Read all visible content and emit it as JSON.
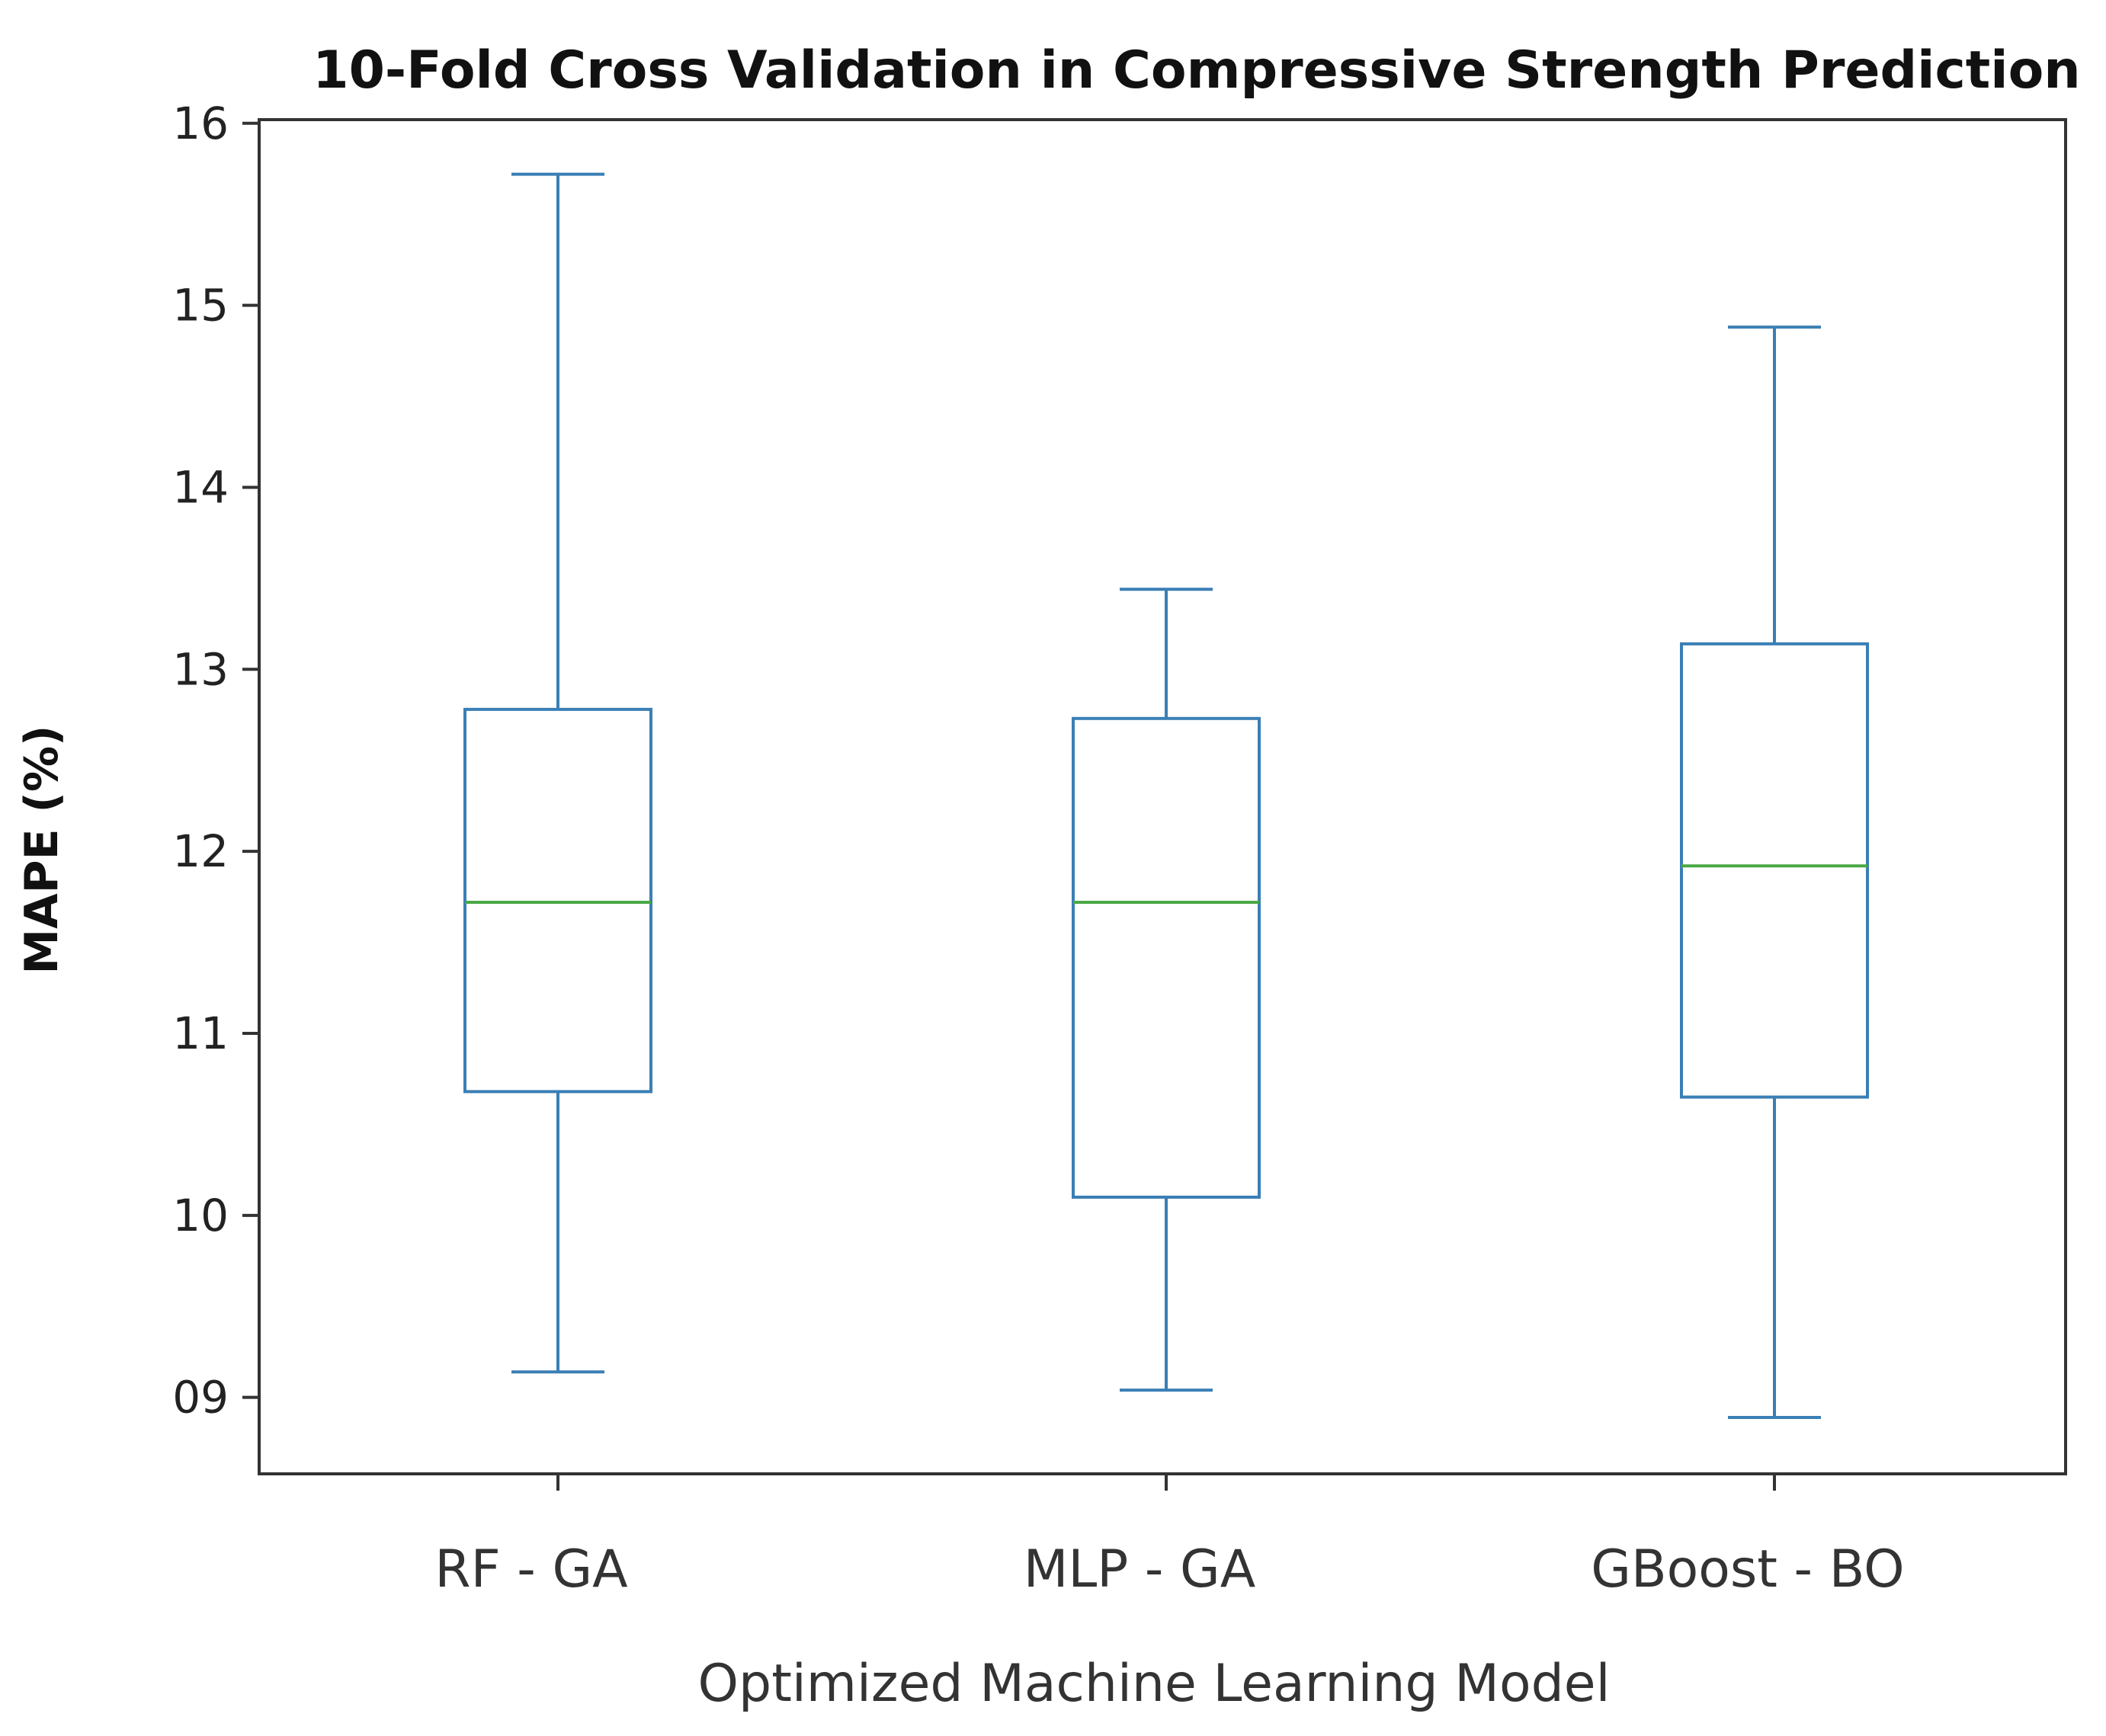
{
  "chart_data": {
    "type": "box",
    "title": "10-Fold Cross Validation in Compressive Strength Prediction",
    "xlabel": "Optimized Machine Learning Model",
    "ylabel": "MAPE (%)",
    "ylim": [
      8.58,
      16.02
    ],
    "yticks": [
      {
        "value": 9,
        "label": "09"
      },
      {
        "value": 10,
        "label": "10"
      },
      {
        "value": 11,
        "label": "11"
      },
      {
        "value": 12,
        "label": "12"
      },
      {
        "value": 13,
        "label": "13"
      },
      {
        "value": 14,
        "label": "14"
      },
      {
        "value": 15,
        "label": "15"
      },
      {
        "value": 16,
        "label": "16"
      }
    ],
    "categories": [
      "RF - GA",
      "MLP - GA",
      "GBoost - BO"
    ],
    "boxes": [
      {
        "name": "RF - GA",
        "min": 9.14,
        "q1": 10.68,
        "median": 11.72,
        "q3": 12.78,
        "max": 15.72
      },
      {
        "name": "MLP - GA",
        "min": 9.04,
        "q1": 10.1,
        "median": 11.72,
        "q3": 12.73,
        "max": 13.44
      },
      {
        "name": "GBoost - BO",
        "min": 8.89,
        "q1": 10.65,
        "median": 11.92,
        "q3": 13.14,
        "max": 14.88
      }
    ],
    "colors": {
      "box": "#3a7fb5",
      "median": "#4aa844",
      "axis": "#333333"
    },
    "grid": false,
    "legend": "none"
  }
}
